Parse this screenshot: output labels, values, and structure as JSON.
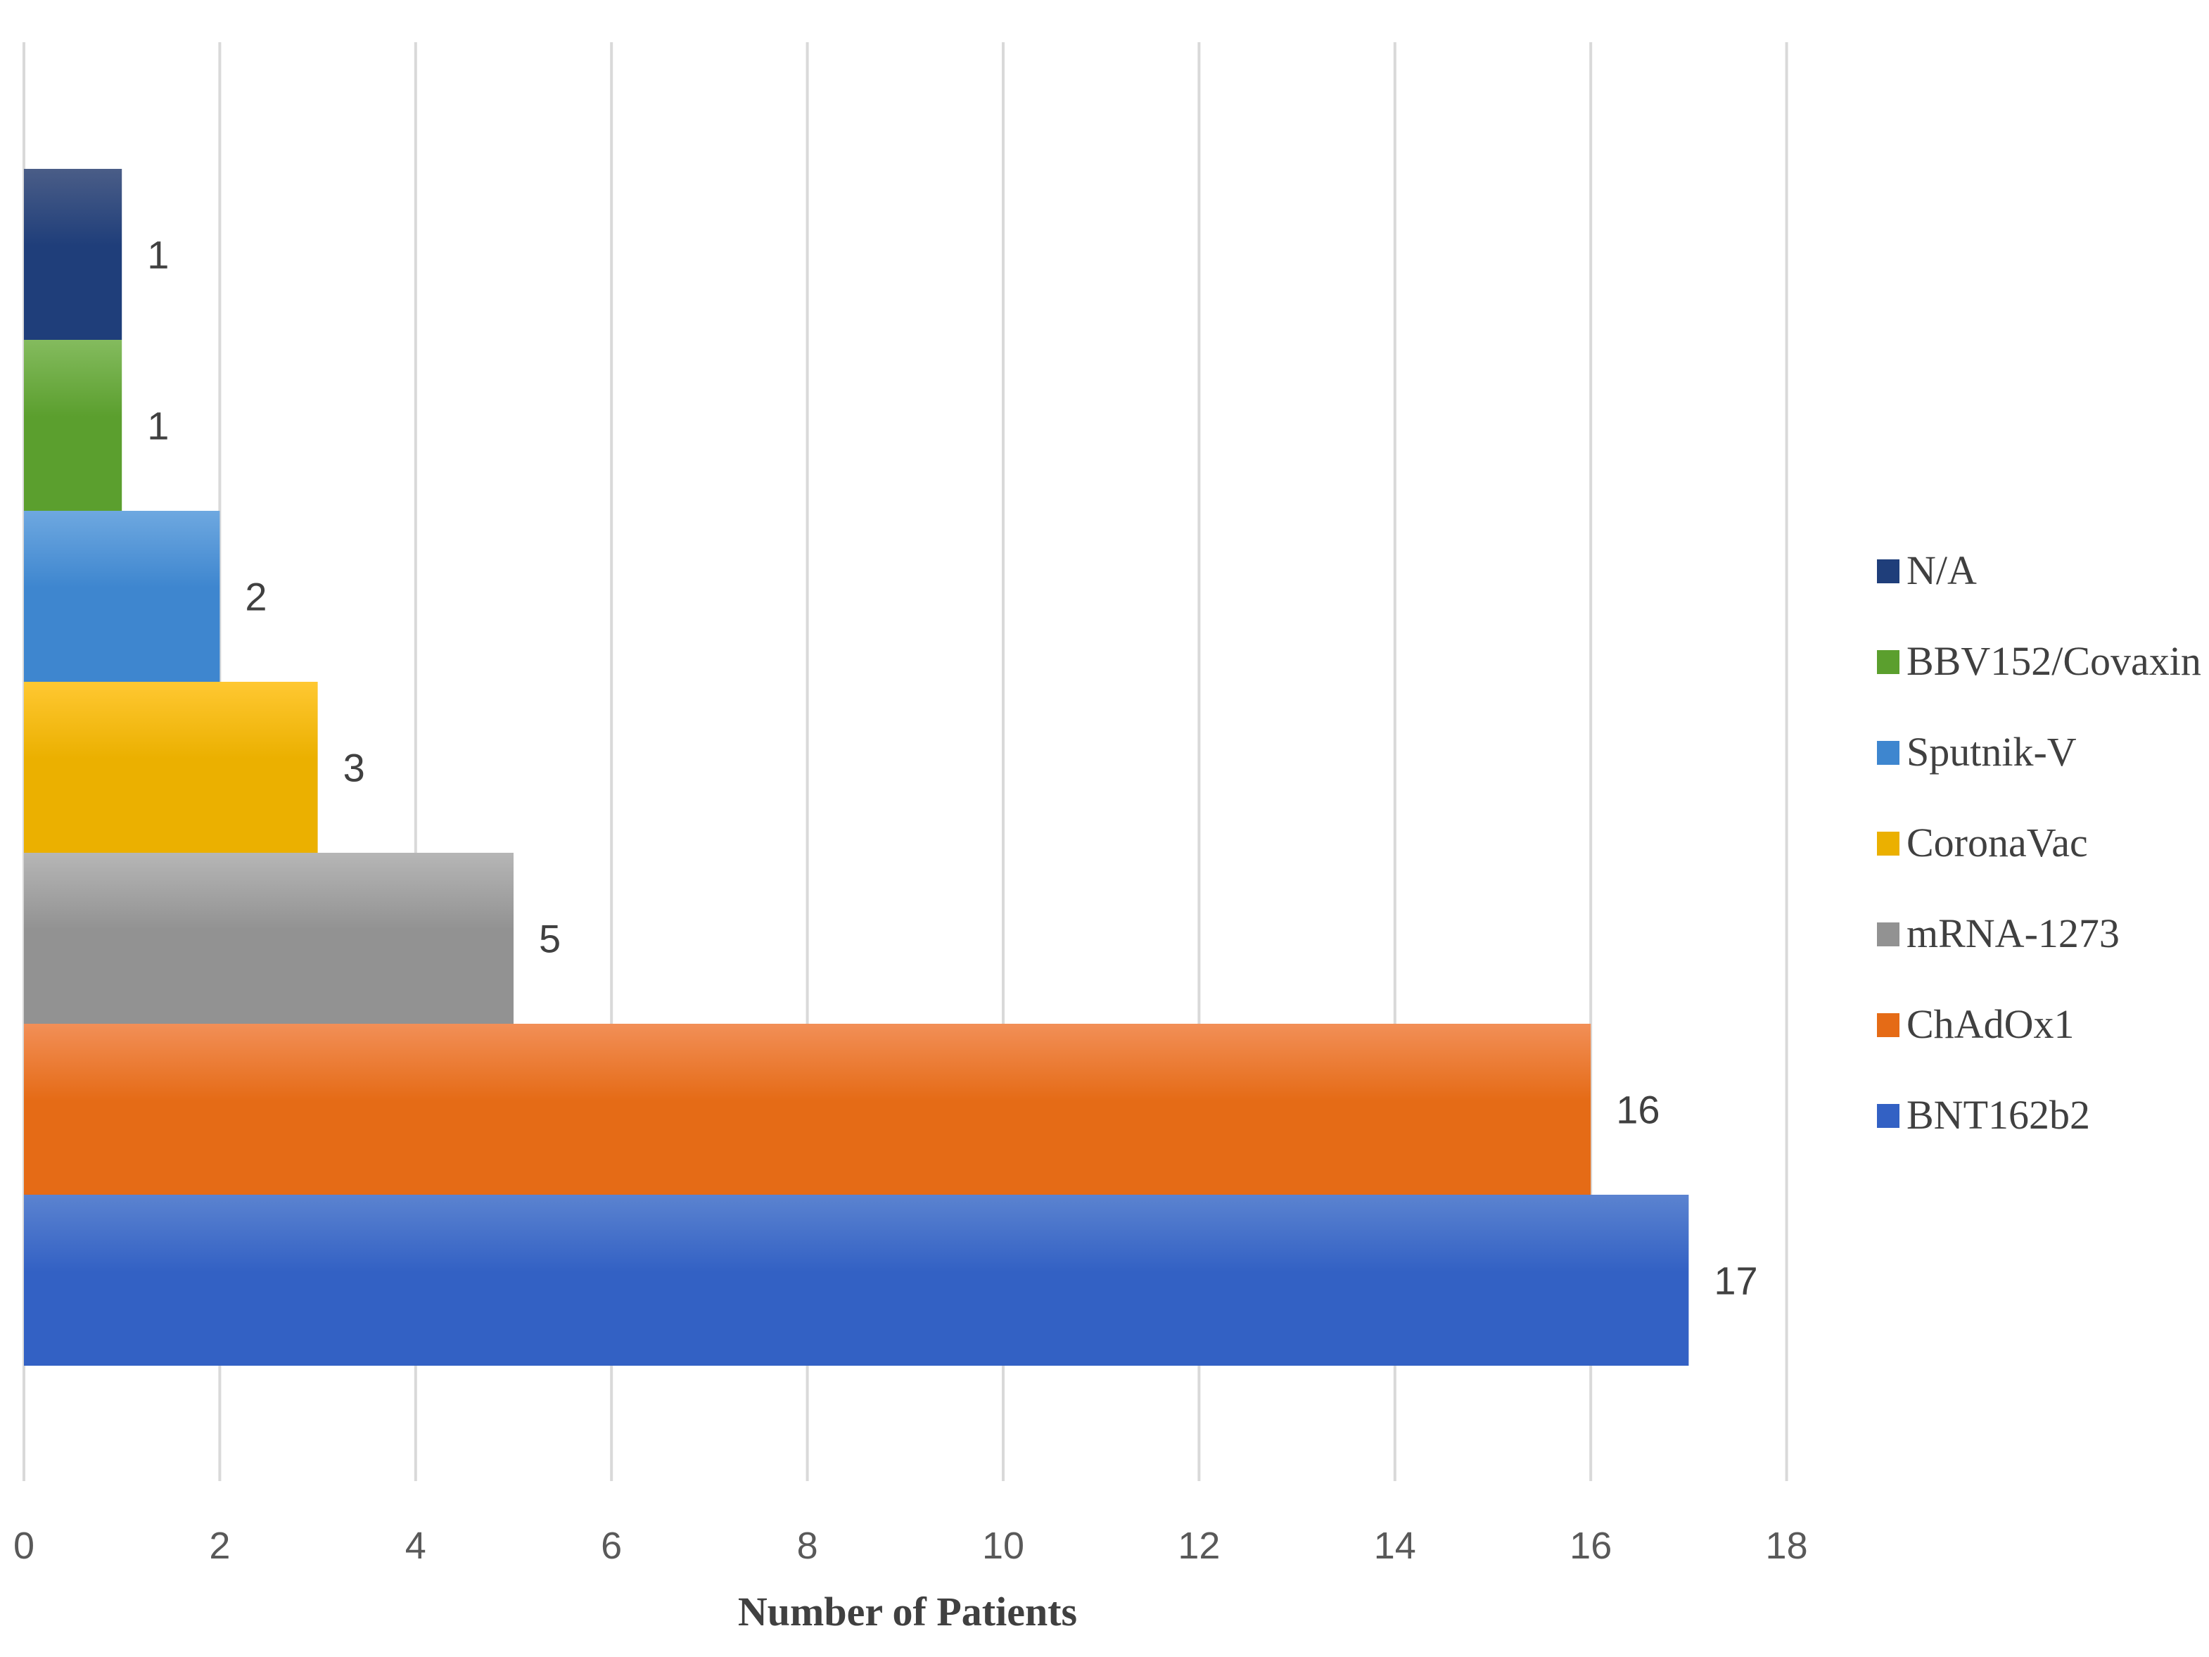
{
  "chart_data": {
    "type": "bar",
    "orientation": "horizontal",
    "stacked": true,
    "xlabel": "Number of Patients",
    "ylabel": "",
    "xlim": [
      0,
      18
    ],
    "x_ticks": [
      "0",
      "2",
      "4",
      "6",
      "8",
      "10",
      "12",
      "14",
      "16",
      "18"
    ],
    "grid": "vertical",
    "legend_position": "right",
    "series": [
      {
        "name": "N/A",
        "value": 1,
        "label": "1",
        "color": "#1f3e7a",
        "color_light": "#4a5d87"
      },
      {
        "name": "BBV152/Covaxin",
        "value": 1,
        "label": "1",
        "color": "#5b9f2e",
        "color_light": "#84bb5e"
      },
      {
        "name": "Sputnik-V",
        "value": 2,
        "label": "2",
        "color": "#3e86cf",
        "color_light": "#6ea8e0"
      },
      {
        "name": "CoronaVac",
        "value": 3,
        "label": "3",
        "color": "#ebb000",
        "color_light": "#ffc832"
      },
      {
        "name": "mRNA-1273",
        "value": 5,
        "label": "5",
        "color": "#929292",
        "color_light": "#b6b6b6"
      },
      {
        "name": "ChAdOx1",
        "value": 16,
        "label": "16",
        "color": "#e56b16",
        "color_light": "#f28f57"
      },
      {
        "name": "BNT162b2",
        "value": 17,
        "label": "17",
        "color": "#3361c4",
        "color_light": "#5b83d0"
      }
    ]
  }
}
